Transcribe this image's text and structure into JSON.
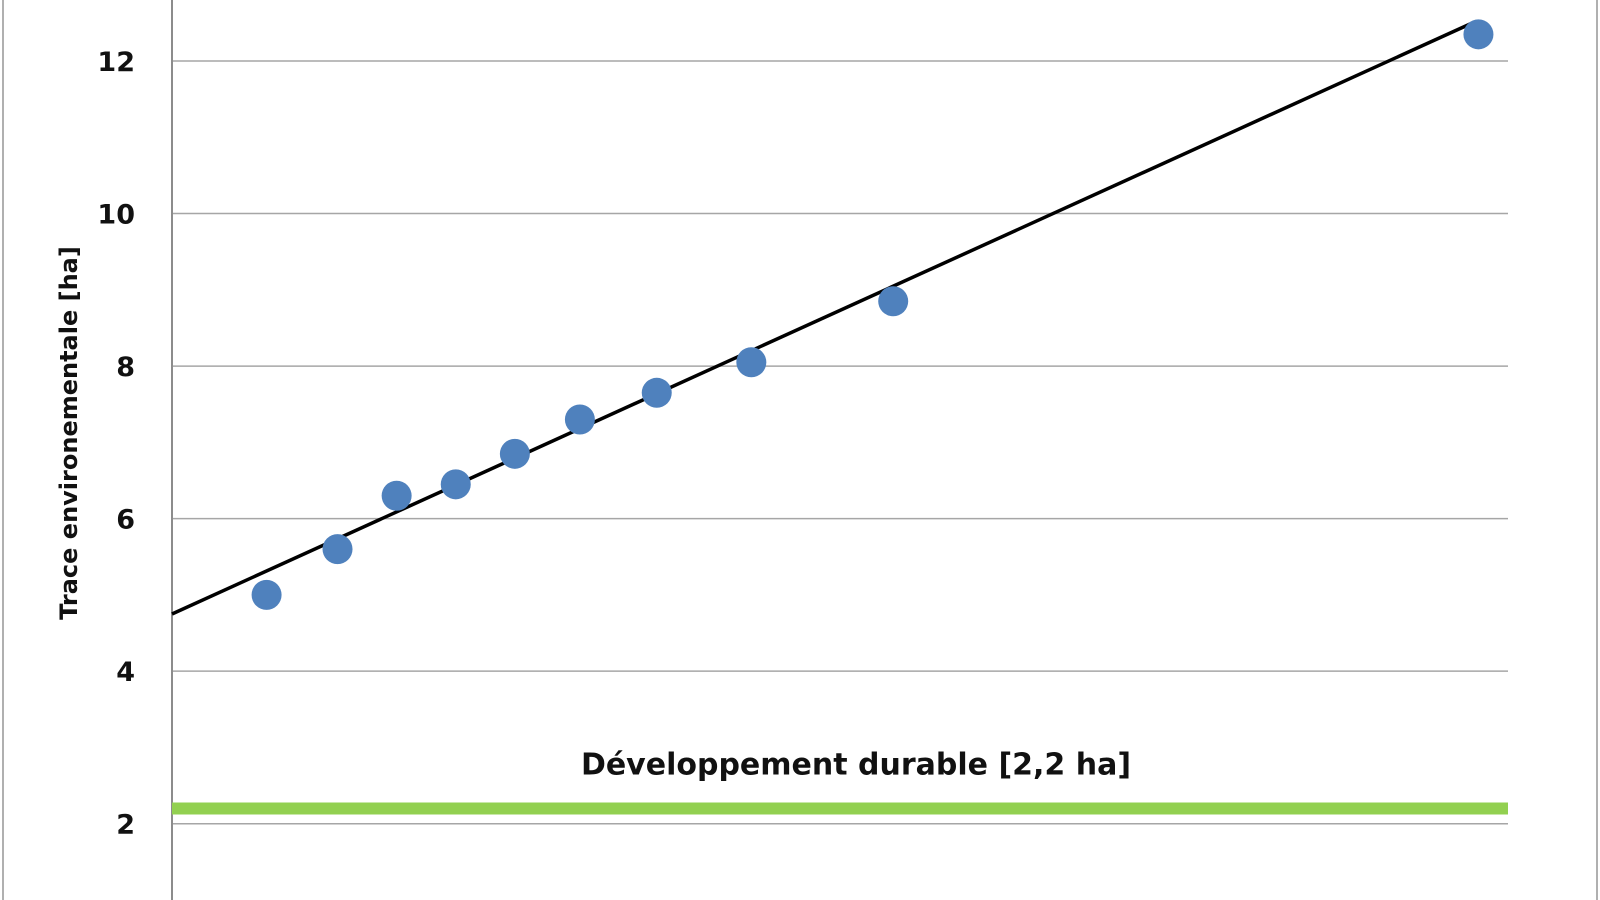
{
  "chart_data": {
    "type": "scatter",
    "title": "",
    "xlabel": "",
    "ylabel": "Trace environementale [ha]",
    "ylim": [
      1,
      12.8
    ],
    "xlim": [
      0,
      22.6
    ],
    "y_ticks": [
      "2",
      "4",
      "6",
      "8",
      "10",
      "12"
    ],
    "grid": true,
    "series": [
      {
        "x": [
          1.6,
          2.8,
          3.8,
          4.8,
          5.8,
          6.9,
          8.2,
          9.8,
          12.2,
          22.1
        ],
        "y": [
          5.0,
          5.6,
          6.3,
          6.45,
          6.85,
          7.3,
          7.65,
          8.05,
          8.85,
          12.35
        ]
      }
    ],
    "trendline": {
      "x": [
        0,
        22.0
      ],
      "y": [
        4.75,
        12.5
      ]
    },
    "reference_line": {
      "label": "Développement durable [2,2 ha]",
      "y": 2.2
    },
    "colors": {
      "points": "#4f81bd",
      "trendline": "#000000",
      "reference": "#92d050",
      "grid": "#a6a6a6",
      "frame": "#b0b0b0"
    }
  }
}
